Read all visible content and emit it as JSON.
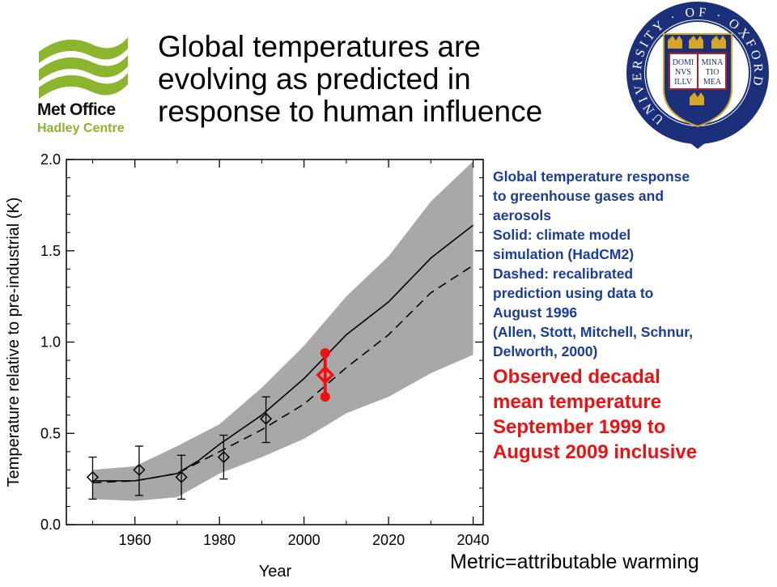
{
  "branding": {
    "logo_line1": "Met Office",
    "logo_line2": "Hadley Centre",
    "logo_green": "#8cb42c",
    "crest_ring_text": "UNIVERSITY · OF · OXFORD",
    "crest_book_left": [
      "DOMI",
      "NVS",
      "ILLV"
    ],
    "crest_book_right": [
      "MINA",
      "TIO",
      "MEA"
    ],
    "crest_colors": {
      "ring": "#1b2f7a",
      "shield": "#1b2f7a",
      "gold": "#d4a62a",
      "red": "#b22222"
    }
  },
  "title_lines": [
    "Global temperatures are",
    "evolving as predicted in",
    "response to human influence"
  ],
  "description": {
    "blue_lines": [
      "Global temperature response",
      "to greenhouse gases and",
      "aerosols",
      "Solid: climate model",
      "simulation (HadCM2)",
      "Dashed: recalibrated",
      "prediction using data to",
      "August 1996",
      "(Allen, Stott, Mitchell, Schnur,",
      "Delworth, 2000)"
    ],
    "red_lines": [
      "Observed decadal",
      "mean temperature",
      "September 1999 to",
      "August 2009 inclusive"
    ],
    "blue_color": "#1a3d99",
    "red_color": "#ee1111"
  },
  "metric": "Metric=attributable warming",
  "chart_data": {
    "type": "line",
    "xlabel": "Year",
    "ylabel": "Temperature relative to pre-industrial (K)",
    "xlim": [
      1948,
      2042
    ],
    "ylim": [
      0.0,
      2.0
    ],
    "x_ticks": [
      1960,
      1980,
      2000,
      2020,
      2040
    ],
    "y_ticks": [
      "0.0",
      "0.5",
      "1.0",
      "1.5",
      "2.0"
    ],
    "y_tick_values": [
      0.0,
      0.5,
      1.0,
      1.5,
      2.0
    ],
    "grid": false,
    "uncertainty_band": {
      "x": [
        1950,
        1960,
        1970,
        1980,
        1990,
        2000,
        2010,
        2020,
        2030,
        2040
      ],
      "lower": [
        0.14,
        0.13,
        0.15,
        0.28,
        0.37,
        0.47,
        0.61,
        0.7,
        0.83,
        0.93
      ],
      "upper": [
        0.3,
        0.32,
        0.43,
        0.55,
        0.75,
        0.98,
        1.25,
        1.47,
        1.77,
        1.99
      ],
      "color": "#a8a8a8"
    },
    "series": [
      {
        "style": "solid",
        "x": [
          1950,
          1955,
          1960,
          1965,
          1970,
          1975,
          1980,
          1985,
          1990,
          1995,
          2000,
          2005,
          2010,
          2020,
          2030,
          2040
        ],
        "y": [
          0.24,
          0.24,
          0.24,
          0.26,
          0.28,
          0.35,
          0.44,
          0.52,
          0.6,
          0.7,
          0.8,
          0.92,
          1.04,
          1.22,
          1.46,
          1.64
        ]
      },
      {
        "style": "dashed",
        "x": [
          1950,
          1960,
          1970,
          1980,
          1990,
          2000,
          2010,
          2020,
          2030,
          2040
        ],
        "y": [
          0.23,
          0.24,
          0.28,
          0.4,
          0.52,
          0.66,
          0.86,
          1.04,
          1.27,
          1.42
        ]
      }
    ],
    "observations": [
      {
        "x": 1950,
        "y": 0.26,
        "low": 0.14,
        "high": 0.37
      },
      {
        "x": 1961,
        "y": 0.3,
        "low": 0.16,
        "high": 0.43
      },
      {
        "x": 1971,
        "y": 0.26,
        "low": 0.14,
        "high": 0.38
      },
      {
        "x": 1981,
        "y": 0.37,
        "low": 0.25,
        "high": 0.49
      },
      {
        "x": 1991,
        "y": 0.58,
        "low": 0.45,
        "high": 0.7
      }
    ],
    "highlight_observation": {
      "x": 2005,
      "y": 0.82,
      "low": 0.7,
      "high": 0.94,
      "color": "#ee1111"
    }
  }
}
